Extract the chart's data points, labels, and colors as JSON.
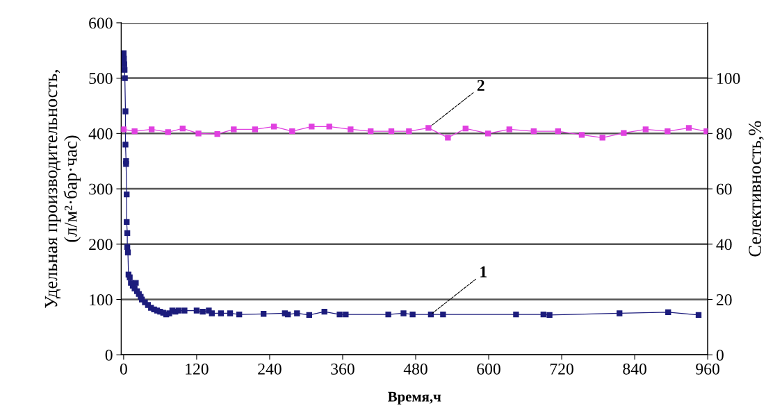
{
  "chart_data": {
    "type": "line",
    "xlabel": "Время,ч",
    "ylabel": "Удельная производительность,\n(л/м²·бар·час)",
    "y2label": "Селективность,%",
    "xlim": [
      -4,
      960
    ],
    "xticks": [
      0,
      120,
      240,
      360,
      480,
      600,
      720,
      840,
      960
    ],
    "ylim": [
      0,
      600
    ],
    "yticks": [
      0,
      100,
      200,
      300,
      400,
      500,
      600
    ],
    "y2lim": [
      0,
      120
    ],
    "y2ticks": [
      0,
      20,
      40,
      60,
      80,
      100
    ],
    "grid": "y",
    "marker": "square",
    "line_style": "solid",
    "series": [
      {
        "color": "#1c1c7c",
        "x": [
          0,
          0.5,
          1,
          1.5,
          2,
          3,
          3,
          4,
          4,
          5,
          5,
          6,
          6,
          7,
          8,
          10,
          12,
          15,
          18,
          20,
          22,
          25,
          28,
          30,
          35,
          40,
          45,
          50,
          55,
          60,
          65,
          70,
          75,
          80,
          85,
          90,
          100,
          120,
          130,
          140,
          145,
          160,
          175,
          190,
          230,
          265,
          270,
          285,
          305,
          330,
          355,
          365,
          435,
          460,
          475,
          505,
          525,
          645,
          690,
          700,
          815,
          895,
          945
        ],
        "values": [
          545,
          535,
          525,
          515,
          500,
          440,
          380,
          350,
          345,
          290,
          240,
          220,
          195,
          185,
          145,
          140,
          130,
          125,
          120,
          130,
          115,
          110,
          105,
          100,
          95,
          90,
          85,
          82,
          80,
          78,
          76,
          73,
          75,
          80,
          78,
          80,
          80,
          80,
          78,
          80,
          75,
          75,
          75,
          73,
          74,
          75,
          73,
          75,
          72,
          78,
          73,
          73,
          73,
          75,
          73,
          73,
          73,
          73,
          73,
          72,
          75,
          77,
          72
        ]
      },
      {
        "color": "#e040e0",
        "axis": "y2",
        "x": [
          0,
          18,
          46,
          73,
          97,
          123,
          154,
          181,
          216,
          247,
          277,
          309,
          338,
          373,
          406,
          440,
          469,
          501,
          533,
          562,
          599,
          634,
          674,
          714,
          753,
          787,
          822,
          858,
          894,
          929,
          958
        ],
        "values": [
          81.5,
          80.8,
          81.5,
          80.5,
          81.8,
          80,
          79.8,
          81.5,
          81.5,
          82.5,
          80.8,
          82.5,
          82.5,
          81.5,
          80.8,
          80.8,
          80.8,
          82,
          78.5,
          81.8,
          80,
          81.5,
          80.8,
          80.8,
          79.5,
          78.5,
          80.2,
          81.5,
          80.8,
          82,
          80.8
        ]
      }
    ],
    "annotations": [
      {
        "text": "1",
        "x": 505,
        "y": 73
      },
      {
        "text": "2",
        "x": 501,
        "y": 410
      }
    ]
  }
}
